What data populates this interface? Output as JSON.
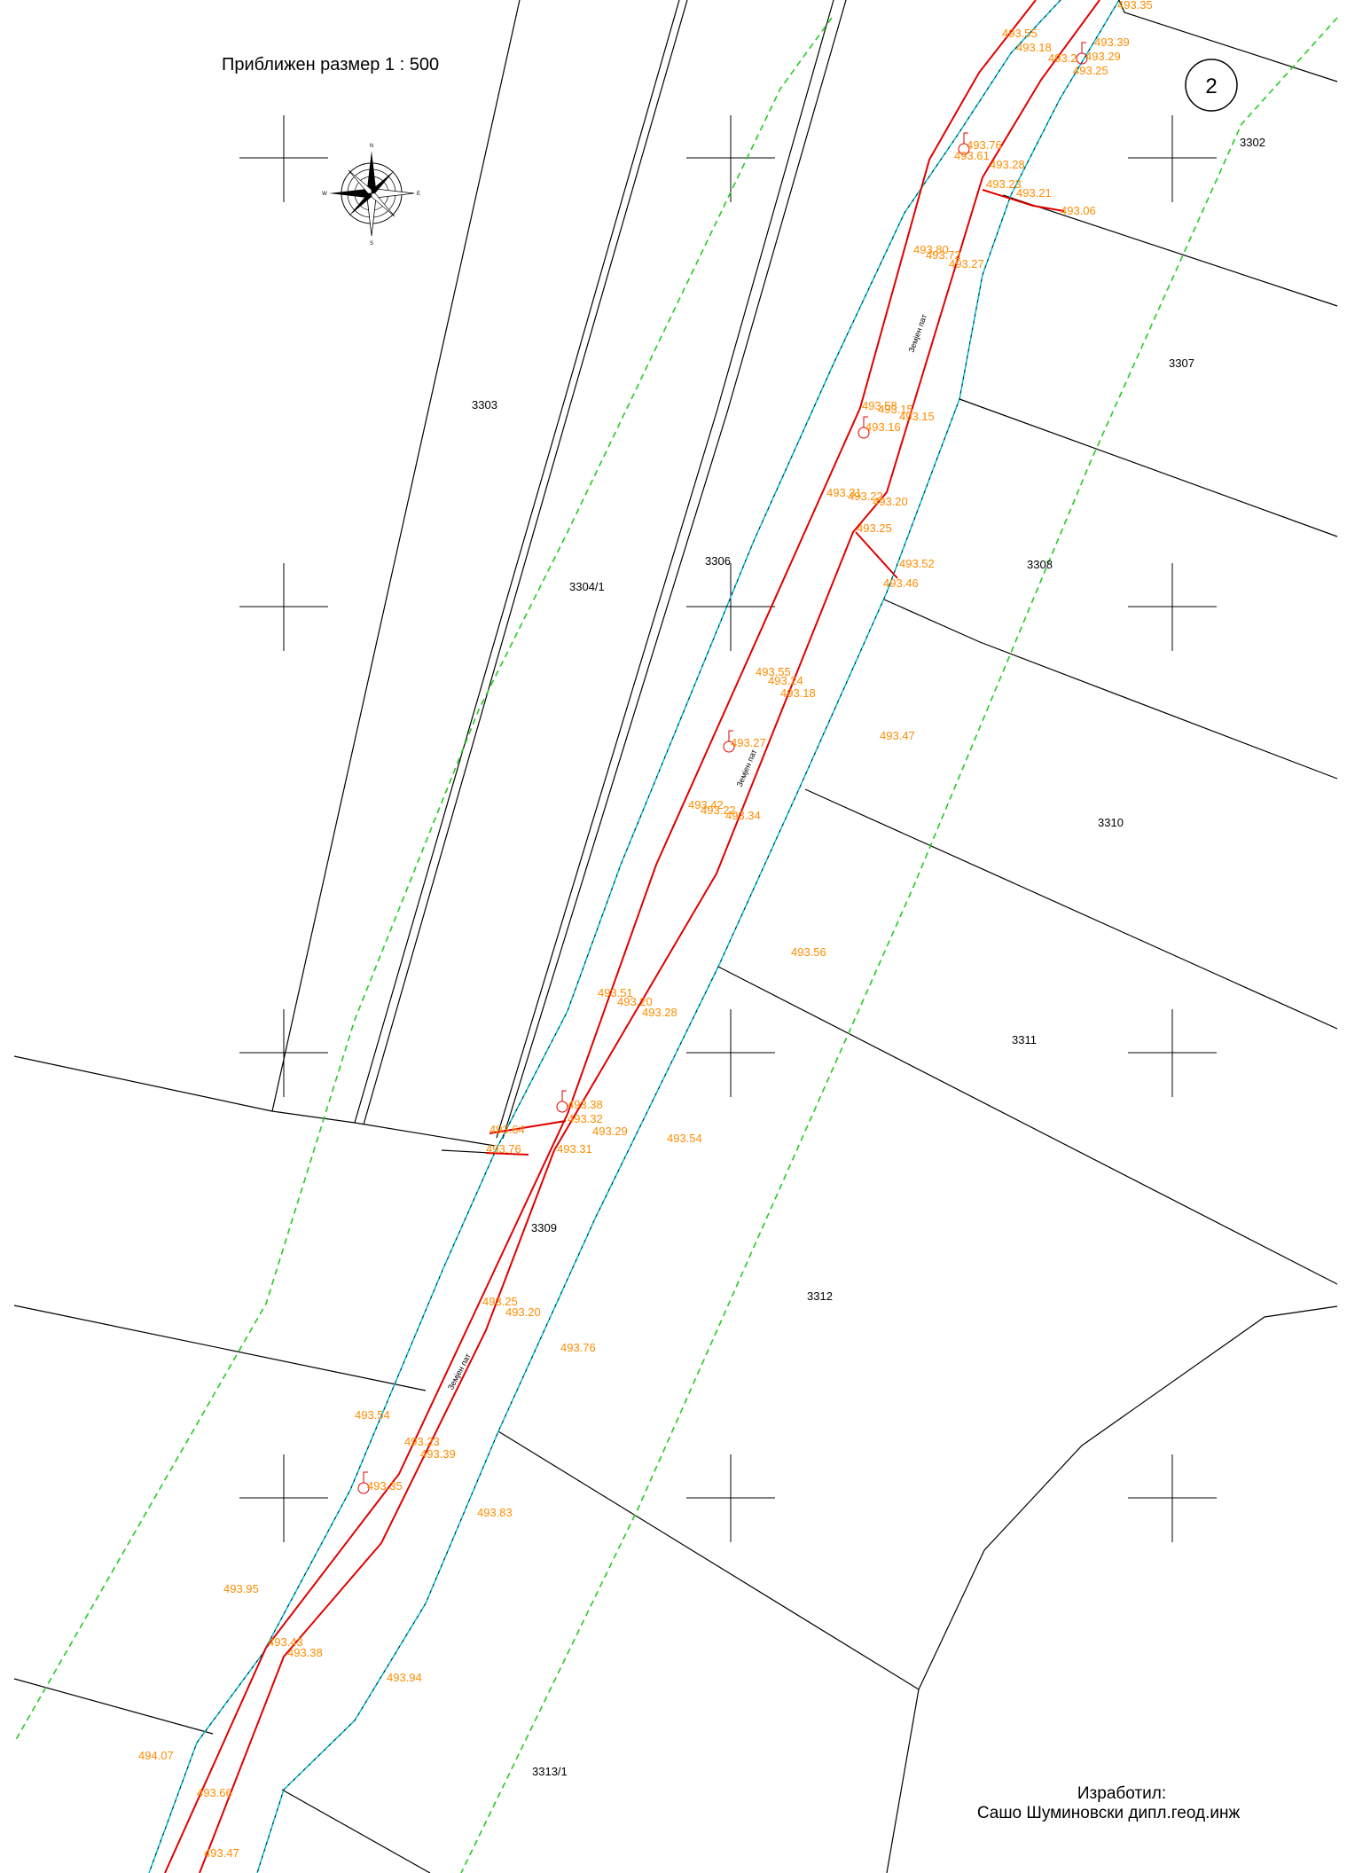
{
  "header": {
    "scale_label": "Приближен размер 1  :  500",
    "sheet_number": "2"
  },
  "compass": {
    "n": "N",
    "s": "S",
    "e": "E",
    "w": "W"
  },
  "parcels": [
    "3302",
    "3303",
    "3304/1",
    "3306",
    "3307",
    "3308",
    "3309",
    "3310",
    "3311",
    "3312",
    "3313/1"
  ],
  "road_label": "Земјен пат",
  "elevations": [
    "493.35",
    "493.55",
    "493.18",
    "493.39",
    "493.29",
    "493.25",
    "493.2",
    "493.76",
    "493.61",
    "493.28",
    "493.23",
    "493.21",
    "493.06",
    "493.80",
    "493.72",
    "493.27",
    "493.58",
    "493.15",
    "493.15",
    "493.16",
    "493.31",
    "493.22",
    "493.20",
    "493.25",
    "493.52",
    "493.46",
    "493.55",
    "493.24",
    "493.18",
    "493.27",
    "493.47",
    "493.42",
    "493.22",
    "493.34",
    "493.56",
    "493.51",
    "493.20",
    "493.28",
    "493.38",
    "493.32",
    "493.64",
    "493.29",
    "493.54",
    "493.76",
    "493.31",
    "493.25",
    "493.20",
    "493.76",
    "493.54",
    "493.23",
    "493.39",
    "493.35",
    "493.83",
    "493.95",
    "493.43",
    "493.38",
    "493.94",
    "494.07",
    "493.66",
    "493.47"
  ],
  "footer": {
    "made_by_label": "Изработил:",
    "author": "Сашо Шуминовски дипл.геод.инж"
  },
  "colors": {
    "road_edge": "#e00000",
    "boundary_cyan": "#00bcd4",
    "boundary_green": "#22cc22",
    "elevation_text": "#ff8c00"
  }
}
